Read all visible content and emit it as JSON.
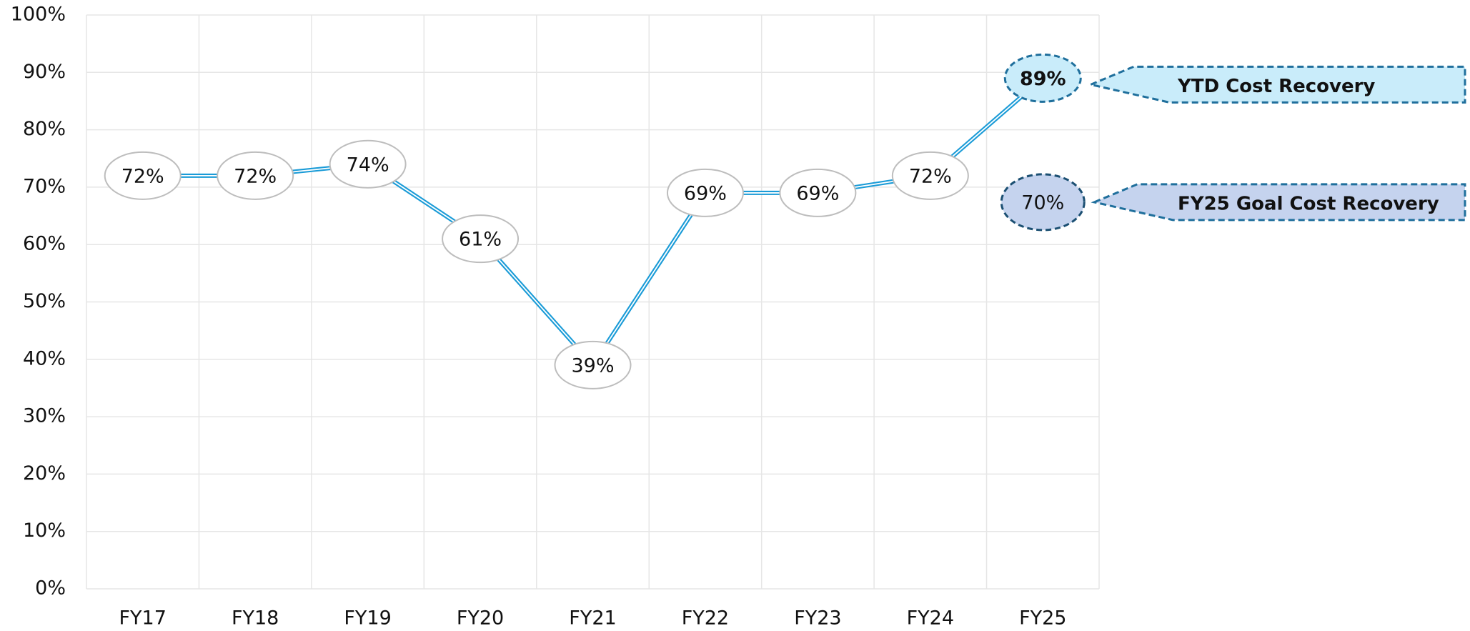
{
  "chart_data": {
    "type": "line",
    "categories": [
      "FY17",
      "FY18",
      "FY19",
      "FY20",
      "FY21",
      "FY22",
      "FY23",
      "FY24",
      "FY25"
    ],
    "series": [
      {
        "name": "YTD Cost Recovery",
        "color": "#1a9bd7",
        "values": [
          72,
          72,
          74,
          61,
          39,
          69,
          69,
          72,
          89
        ],
        "value_labels": [
          "72%",
          "72%",
          "74%",
          "61%",
          "39%",
          "69%",
          "69%",
          "72%",
          "89%"
        ]
      },
      {
        "name": "FY25 Goal Cost Recovery",
        "color": "#c5d3ee",
        "values": [
          null,
          null,
          null,
          null,
          null,
          null,
          null,
          null,
          70
        ],
        "value_labels": [
          null,
          null,
          null,
          null,
          null,
          null,
          null,
          null,
          "70%"
        ]
      }
    ],
    "ylim": [
      0,
      100
    ],
    "yticks": [
      {
        "value": 0,
        "label": "0%"
      },
      {
        "value": 10,
        "label": "10%"
      },
      {
        "value": 20,
        "label": "20%"
      },
      {
        "value": 30,
        "label": "30%"
      },
      {
        "value": 40,
        "label": "40%"
      },
      {
        "value": 50,
        "label": "50%"
      },
      {
        "value": 60,
        "label": "60%"
      },
      {
        "value": 70,
        "label": "70%"
      },
      {
        "value": 80,
        "label": "80%"
      },
      {
        "value": 90,
        "label": "90%"
      },
      {
        "value": 100,
        "label": "100%"
      }
    ],
    "grid": true
  }
}
